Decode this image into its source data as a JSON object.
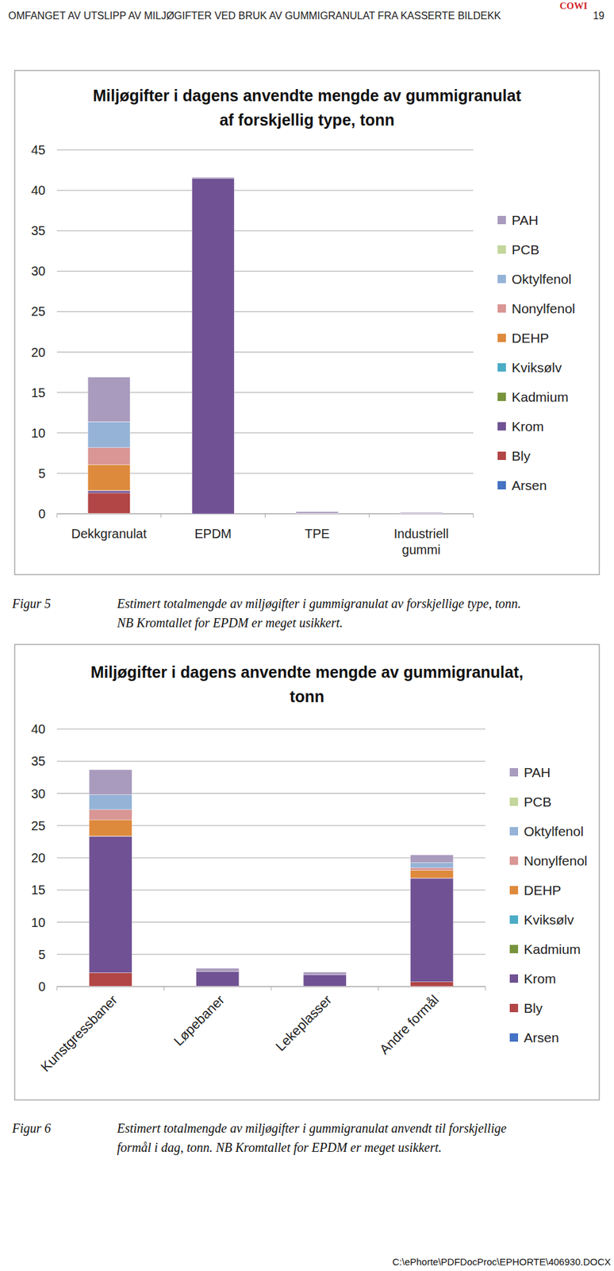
{
  "header": {
    "title": "OMFANGET AV UTSLIPP AV MILJØGIFTER VED BRUK AV GUMMIGRANULAT FRA KASSERTE BILDEKK",
    "page_number": "19",
    "logo": "COWI"
  },
  "chart_data": [
    {
      "type": "bar",
      "title": "Miljøgifter i dagens anvendte mengde av gummigranulat\naf forskjellig type, tonn",
      "categories": [
        "Dekkgranulat",
        "EPDM",
        "TPE",
        "Industriell gummi"
      ],
      "stacked": true,
      "grid": true,
      "legend": "right",
      "ylim": [
        0,
        45
      ],
      "yticks": [
        0,
        5,
        10,
        15,
        20,
        25,
        30,
        35,
        40,
        45
      ],
      "series": [
        {
          "name": "PAH",
          "color": "#a99bbd",
          "values": [
            5.5,
            0.1,
            0.2,
            0.1
          ]
        },
        {
          "name": "PCB",
          "color": "#c3d69b",
          "values": [
            0.01,
            0,
            0,
            0
          ]
        },
        {
          "name": "Oktylfenol",
          "color": "#95b3d7",
          "values": [
            3.2,
            0,
            0,
            0
          ]
        },
        {
          "name": "Nonylfenol",
          "color": "#d99694",
          "values": [
            2.1,
            0,
            0,
            0
          ]
        },
        {
          "name": "DEHP",
          "color": "#de8a3c",
          "values": [
            3.2,
            0,
            0,
            0
          ]
        },
        {
          "name": "Kviksølv",
          "color": "#4bacc6",
          "values": [
            0.01,
            0,
            0,
            0
          ]
        },
        {
          "name": "Kadmium",
          "color": "#77933c",
          "values": [
            0.02,
            0,
            0,
            0
          ]
        },
        {
          "name": "Krom",
          "color": "#705294",
          "values": [
            0.3,
            41.5,
            0.05,
            0.05
          ]
        },
        {
          "name": "Bly",
          "color": "#b24545",
          "values": [
            2.5,
            0,
            0.01,
            0.01
          ]
        },
        {
          "name": "Arsen",
          "color": "#4472c4",
          "values": [
            0.05,
            0,
            0,
            0
          ]
        }
      ]
    },
    {
      "type": "bar",
      "title": "Miljøgifter i dagens anvendte mengde av gummigranulat,\ntonn",
      "categories": [
        "Kunstgressbaner",
        "Løpebaner",
        "Lekeplasser",
        "Andre formål"
      ],
      "stacked": true,
      "grid": true,
      "legend": "right",
      "ylim": [
        0,
        40
      ],
      "yticks": [
        0,
        5,
        10,
        15,
        20,
        25,
        30,
        35,
        40
      ],
      "series": [
        {
          "name": "PAH",
          "color": "#a99bbd",
          "values": [
            3.9,
            0.5,
            0.4,
            1.2
          ]
        },
        {
          "name": "PCB",
          "color": "#c3d69b",
          "values": [
            0.01,
            0,
            0,
            0.01
          ]
        },
        {
          "name": "Oktylfenol",
          "color": "#95b3d7",
          "values": [
            2.3,
            0,
            0,
            0.8
          ]
        },
        {
          "name": "Nonylfenol",
          "color": "#d99694",
          "values": [
            1.6,
            0,
            0,
            0.4
          ]
        },
        {
          "name": "DEHP",
          "color": "#de8a3c",
          "values": [
            2.5,
            0,
            0,
            1.2
          ]
        },
        {
          "name": "Kviksølv",
          "color": "#4bacc6",
          "values": [
            0.01,
            0,
            0,
            0.01
          ]
        },
        {
          "name": "Kadmium",
          "color": "#77933c",
          "values": [
            0.02,
            0,
            0,
            0.01
          ]
        },
        {
          "name": "Krom",
          "color": "#705294",
          "values": [
            21.2,
            2.3,
            1.8,
            16.1
          ]
        },
        {
          "name": "Bly",
          "color": "#b24545",
          "values": [
            2.1,
            0.05,
            0.05,
            0.7
          ]
        },
        {
          "name": "Arsen",
          "color": "#4472c4",
          "values": [
            0.05,
            0,
            0,
            0.02
          ]
        }
      ]
    }
  ],
  "captions": [
    {
      "label": "Figur 5",
      "lines": [
        "Estimert totalmengde av miljøgifter i gummigranulat av forskjellige type, tonn.",
        "NB Kromtallet for EPDM er meget usikkert."
      ]
    },
    {
      "label": "Figur 6",
      "lines": [
        "Estimert totalmengde av miljøgifter i gummigranulat anvendt til forskjellige",
        "formål i dag, tonn. NB Kromtallet for EPDM er meget usikkert."
      ]
    }
  ],
  "footer": {
    "path": "C:\\ePhorte\\PDFDocProc\\EPHORTE\\406930.DOCX"
  }
}
